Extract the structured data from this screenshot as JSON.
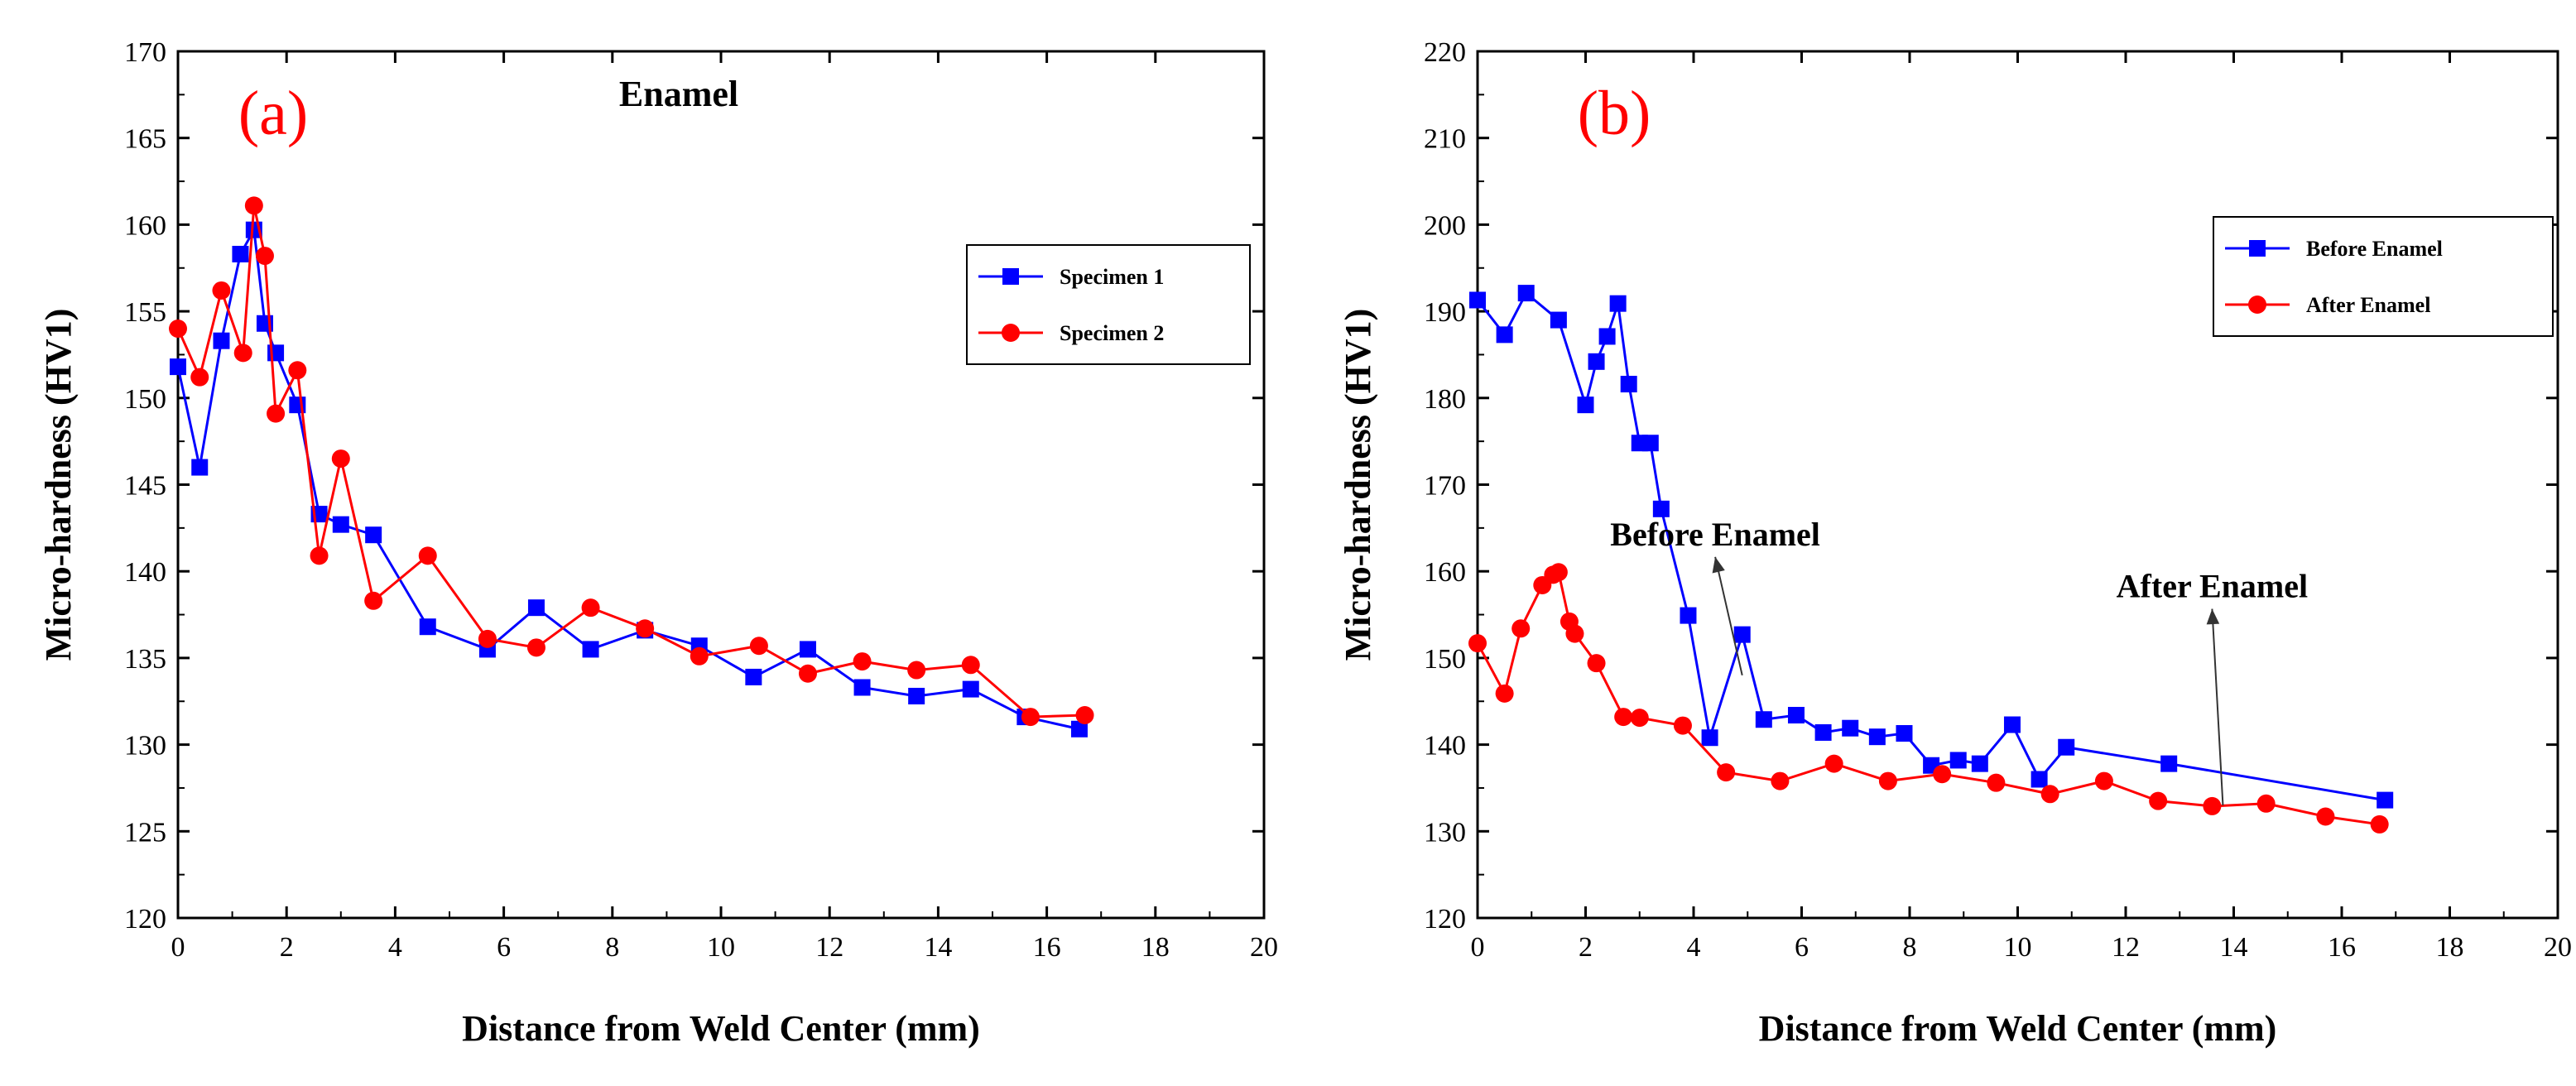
{
  "chart_data": [
    {
      "type": "line",
      "panel_label": "(a)",
      "title": "Enamel",
      "xlabel": "Distance from Weld Center (mm)",
      "ylabel": "Micro-hardness (HV1)",
      "xlim": [
        0,
        20
      ],
      "ylim": [
        120,
        170
      ],
      "xticks": [
        "0",
        "2",
        "4",
        "6",
        "8",
        "10",
        "12",
        "14",
        "16",
        "18",
        "20"
      ],
      "yticks": [
        "120",
        "125",
        "130",
        "135",
        "140",
        "145",
        "150",
        "155",
        "160",
        "165",
        "170"
      ],
      "grid": false,
      "legend": "right",
      "series": [
        {
          "name": "Specimen 1",
          "color": "#0000ff",
          "marker": "square",
          "x": [
            0,
            0.4,
            0.8,
            1.15,
            1.4,
            1.6,
            1.8,
            2.2,
            2.6,
            3.0,
            3.6,
            4.6,
            5.7,
            6.6,
            7.6,
            8.6,
            9.6,
            10.6,
            11.6,
            12.6,
            13.6,
            14.6,
            15.6,
            16.6
          ],
          "y": [
            151.8,
            146.0,
            153.3,
            158.3,
            159.7,
            154.3,
            152.6,
            149.6,
            143.3,
            142.7,
            142.1,
            136.8,
            135.5,
            137.9,
            135.5,
            136.6,
            135.7,
            133.9,
            135.5,
            133.3,
            132.8,
            133.2,
            131.6,
            130.9
          ]
        },
        {
          "name": "Specimen 2",
          "color": "#ff0000",
          "marker": "circle",
          "x": [
            0,
            0.4,
            0.8,
            1.2,
            1.4,
            1.6,
            1.8,
            2.2,
            2.6,
            3.0,
            3.6,
            4.6,
            5.7,
            6.6,
            7.6,
            8.6,
            9.6,
            10.7,
            11.6,
            12.6,
            13.6,
            14.6,
            15.7,
            16.7
          ],
          "y": [
            154.0,
            151.2,
            156.2,
            152.6,
            161.1,
            158.2,
            149.1,
            151.6,
            140.9,
            146.5,
            138.3,
            140.9,
            136.1,
            135.6,
            137.9,
            136.7,
            135.1,
            135.7,
            134.1,
            134.8,
            134.3,
            134.6,
            131.6,
            131.7
          ]
        }
      ]
    },
    {
      "type": "line",
      "panel_label": "(b)",
      "xlabel": "Distance from Weld Center (mm)",
      "ylabel": "Micro-hardness (HV1)",
      "xlim": [
        0,
        20
      ],
      "ylim": [
        120,
        220
      ],
      "xticks": [
        "0",
        "2",
        "4",
        "6",
        "8",
        "10",
        "12",
        "14",
        "16",
        "18",
        "20"
      ],
      "yticks": [
        "120",
        "130",
        "140",
        "150",
        "160",
        "170",
        "180",
        "190",
        "200",
        "210",
        "220"
      ],
      "grid": false,
      "legend": "top-right",
      "annotations": [
        {
          "text": "Before Enamel",
          "xy": [
            4.9,
            148
          ],
          "text_xy": [
            4.4,
            163
          ]
        },
        {
          "text": "After Enamel",
          "xy": [
            13.8,
            133
          ],
          "text_xy": [
            13.6,
            157
          ]
        }
      ],
      "series": [
        {
          "name": "Before Enamel",
          "color": "#0000ff",
          "marker": "square",
          "x": [
            0,
            0.5,
            0.9,
            1.5,
            2.0,
            2.2,
            2.4,
            2.6,
            2.8,
            3.0,
            3.2,
            3.4,
            3.9,
            4.3,
            4.9,
            5.3,
            5.9,
            6.4,
            6.9,
            7.4,
            7.9,
            8.4,
            8.9,
            9.3,
            9.9,
            10.4,
            10.9,
            12.8,
            16.8
          ],
          "y": [
            191.3,
            187.3,
            192.1,
            189.0,
            179.2,
            184.2,
            187.1,
            190.9,
            181.6,
            174.8,
            174.8,
            167.2,
            154.9,
            140.8,
            152.7,
            142.9,
            143.4,
            141.4,
            141.9,
            140.9,
            141.3,
            137.6,
            138.2,
            137.8,
            142.3,
            136.0,
            139.7,
            137.8,
            133.6
          ]
        },
        {
          "name": "After Enamel",
          "color": "#ff0000",
          "marker": "circle",
          "x": [
            0,
            0.5,
            0.8,
            1.2,
            1.4,
            1.5,
            1.7,
            1.8,
            2.2,
            2.7,
            3.0,
            3.8,
            4.6,
            5.6,
            6.6,
            7.6,
            8.6,
            9.6,
            10.6,
            11.6,
            12.6,
            13.6,
            14.6,
            15.7,
            16.7
          ],
          "y": [
            151.7,
            145.9,
            153.4,
            158.4,
            159.6,
            159.9,
            154.2,
            152.8,
            149.4,
            143.2,
            143.1,
            142.2,
            136.8,
            135.8,
            137.8,
            135.8,
            136.6,
            135.6,
            134.3,
            135.8,
            133.5,
            132.9,
            133.2,
            131.7,
            130.8
          ]
        }
      ]
    }
  ]
}
